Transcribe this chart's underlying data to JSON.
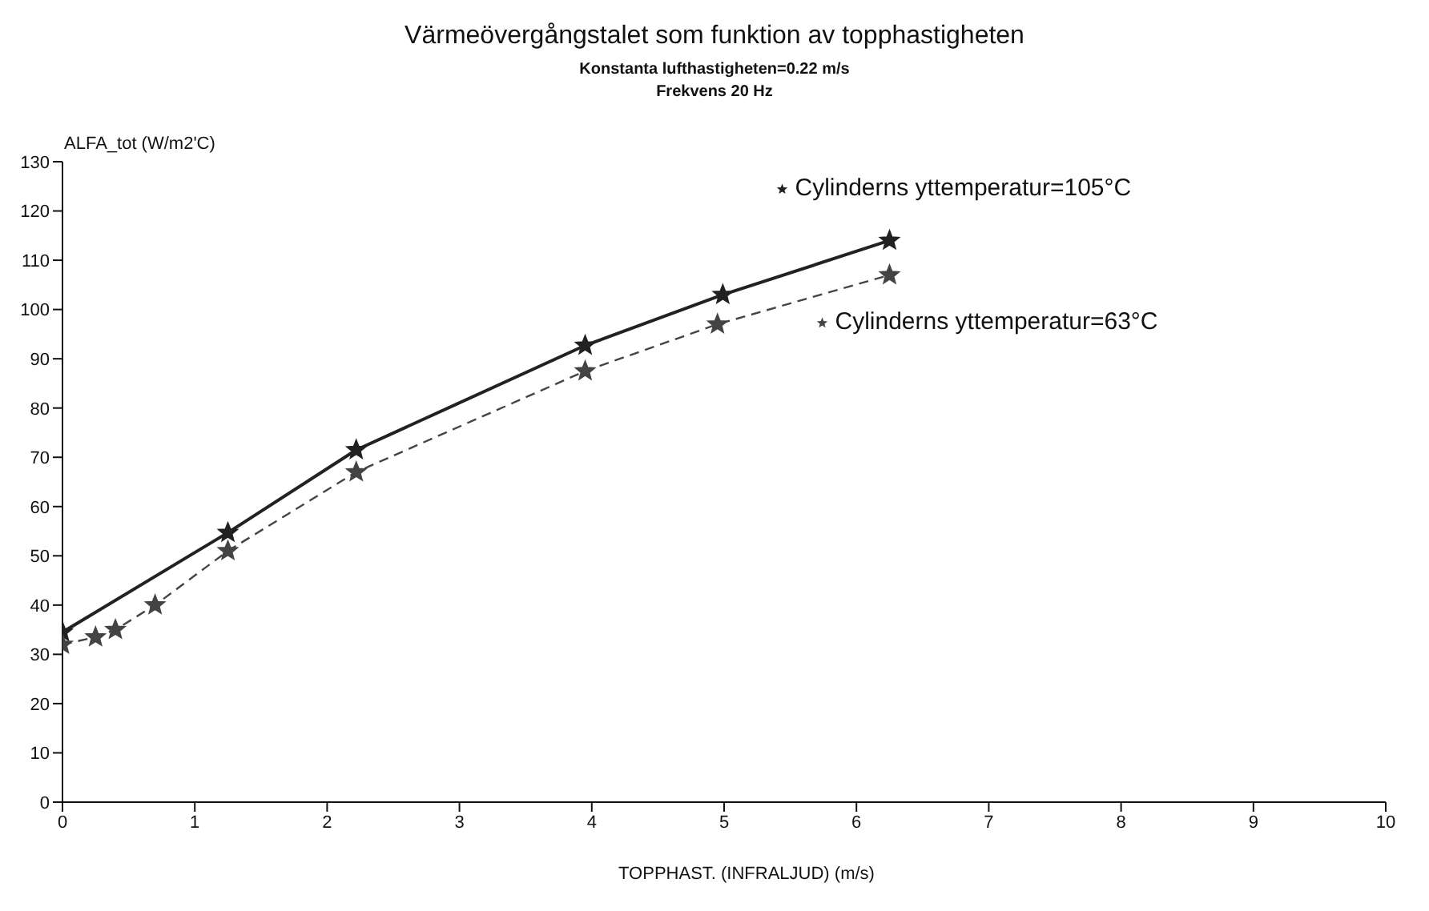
{
  "chart_data": {
    "type": "line",
    "title": "Värmeövergångstalet som funktion av topphastigheten",
    "subtitle": "Konstanta lufthastigheten=0.22 m/s\nFrekvens 20 Hz",
    "xlabel": "TOPPHAST. (INFRALJUD) (m/s)",
    "ylabel": "ALFA_tot  (W/m2'C)",
    "xlim": [
      0,
      10
    ],
    "xticks": [
      0,
      1,
      2,
      3,
      4,
      5,
      6,
      7,
      8,
      9,
      10
    ],
    "ylim": [
      0,
      130
    ],
    "yticks": [
      0,
      10,
      20,
      30,
      40,
      50,
      60,
      70,
      80,
      90,
      100,
      110,
      120,
      130
    ],
    "grid": false,
    "legend": "top right",
    "marker": "star",
    "series": [
      {
        "name": "Cylinderns yttemperatur=105°C",
        "color": "#222222",
        "line_style": "solid",
        "x": [
          0,
          1.25,
          2.22,
          3.95,
          4.99,
          6.25
        ],
        "values": [
          34.5,
          54.7,
          71.5,
          92.7,
          103,
          114
        ]
      },
      {
        "name": "Cylinderns yttemperatur=63°C",
        "color": "#444444",
        "line_style": "dashed",
        "x": [
          0,
          0.25,
          0.4,
          0.7,
          1.25,
          2.22,
          3.95,
          4.95,
          6.25
        ],
        "values": [
          32,
          33.5,
          35,
          40,
          51,
          67,
          87.5,
          97,
          107
        ]
      }
    ]
  }
}
